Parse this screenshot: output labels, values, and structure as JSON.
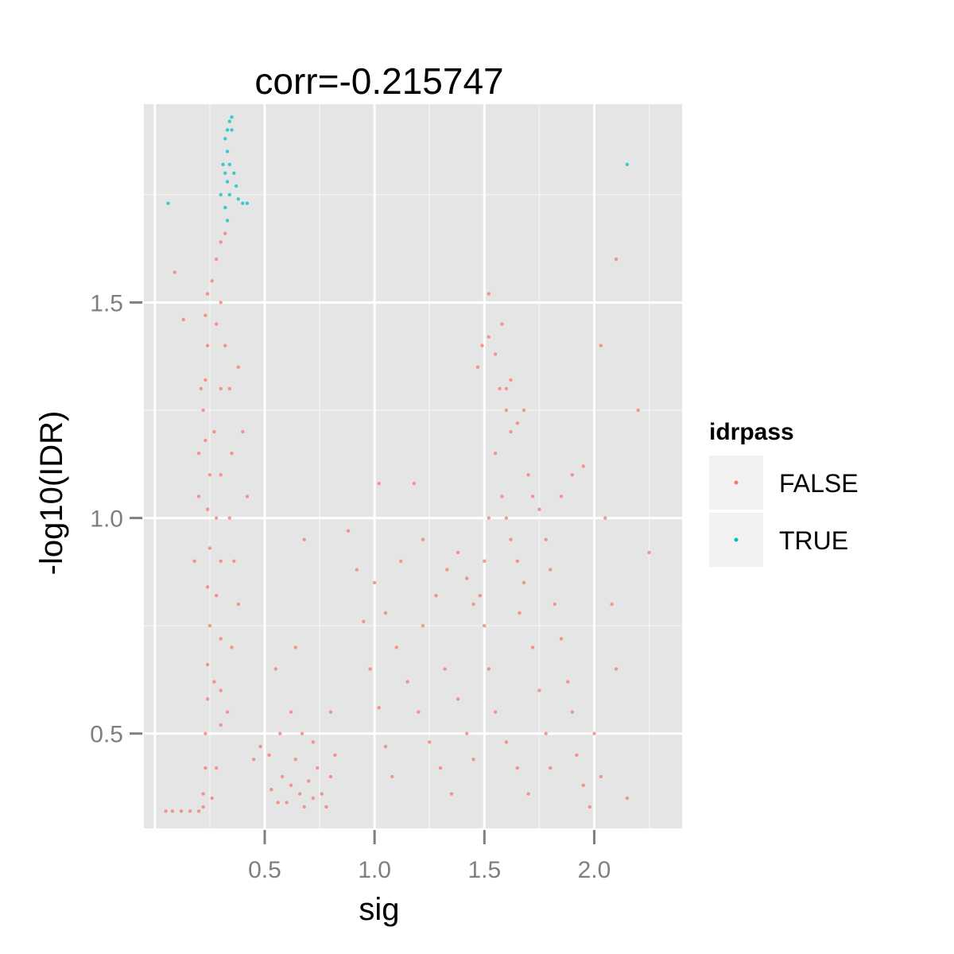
{
  "chart_data": {
    "type": "scatter",
    "title": "corr=-0.215747",
    "xlabel": "sig",
    "ylabel": "-log10(IDR)",
    "xlim": [
      -0.05,
      2.4
    ],
    "ylim": [
      0.28,
      1.96
    ],
    "x_ticks": [
      0.5,
      1.0,
      1.5,
      2.0
    ],
    "x_tick_labels": [
      "0.5",
      "1.0",
      "1.5",
      "2.0"
    ],
    "y_ticks": [
      0.5,
      1.0,
      1.5
    ],
    "y_tick_labels": [
      "0.5",
      "1.0",
      "1.5"
    ],
    "grid": true,
    "legend": {
      "title": "idrpass",
      "position": "right",
      "entries": [
        {
          "label": "FALSE",
          "color": "#F8766D"
        },
        {
          "label": "TRUE",
          "color": "#00BFC4"
        }
      ]
    },
    "series": [
      {
        "name": "FALSE",
        "color": "#F8766D",
        "points": [
          [
            0.05,
            0.32
          ],
          [
            0.08,
            0.32
          ],
          [
            0.12,
            0.32
          ],
          [
            0.16,
            0.32
          ],
          [
            0.2,
            0.32
          ],
          [
            0.22,
            0.33
          ],
          [
            0.22,
            0.36
          ],
          [
            0.23,
            0.42
          ],
          [
            0.23,
            0.5
          ],
          [
            0.24,
            0.58
          ],
          [
            0.24,
            0.66
          ],
          [
            0.25,
            0.75
          ],
          [
            0.24,
            0.84
          ],
          [
            0.25,
            0.93
          ],
          [
            0.24,
            1.02
          ],
          [
            0.25,
            1.1
          ],
          [
            0.23,
            1.18
          ],
          [
            0.22,
            1.25
          ],
          [
            0.23,
            1.32
          ],
          [
            0.24,
            1.4
          ],
          [
            0.23,
            1.47
          ],
          [
            0.24,
            1.52
          ],
          [
            0.26,
            1.55
          ],
          [
            0.28,
            1.6
          ],
          [
            0.3,
            1.64
          ],
          [
            0.32,
            1.66
          ],
          [
            0.3,
            1.5
          ],
          [
            0.28,
            1.45
          ],
          [
            0.3,
            1.3
          ],
          [
            0.27,
            1.2
          ],
          [
            0.3,
            1.1
          ],
          [
            0.28,
            1.0
          ],
          [
            0.3,
            0.9
          ],
          [
            0.28,
            0.82
          ],
          [
            0.3,
            0.72
          ],
          [
            0.27,
            0.62
          ],
          [
            0.3,
            0.52
          ],
          [
            0.28,
            0.42
          ],
          [
            0.26,
            0.35
          ],
          [
            0.32,
            1.4
          ],
          [
            0.34,
            1.3
          ],
          [
            0.35,
            1.15
          ],
          [
            0.34,
            1.0
          ],
          [
            0.36,
            0.9
          ],
          [
            0.38,
            0.8
          ],
          [
            0.35,
            0.7
          ],
          [
            0.4,
            1.2
          ],
          [
            0.42,
            1.05
          ],
          [
            0.38,
            1.35
          ],
          [
            0.2,
            1.05
          ],
          [
            0.18,
            0.9
          ],
          [
            0.21,
            1.3
          ],
          [
            0.2,
            1.15
          ],
          [
            0.09,
            1.57
          ],
          [
            0.13,
            1.46
          ],
          [
            0.3,
            0.6
          ],
          [
            0.33,
            0.55
          ],
          [
            0.53,
            0.37
          ],
          [
            0.56,
            0.34
          ],
          [
            0.58,
            0.4
          ],
          [
            0.6,
            0.34
          ],
          [
            0.62,
            0.38
          ],
          [
            0.64,
            0.44
          ],
          [
            0.66,
            0.36
          ],
          [
            0.68,
            0.33
          ],
          [
            0.7,
            0.39
          ],
          [
            0.72,
            0.35
          ],
          [
            0.74,
            0.42
          ],
          [
            0.76,
            0.36
          ],
          [
            0.78,
            0.33
          ],
          [
            0.8,
            0.4
          ],
          [
            0.82,
            0.45
          ],
          [
            0.57,
            0.5
          ],
          [
            0.62,
            0.55
          ],
          [
            0.67,
            0.5
          ],
          [
            0.72,
            0.48
          ],
          [
            0.8,
            0.55
          ],
          [
            0.52,
            0.45
          ],
          [
            0.48,
            0.47
          ],
          [
            0.45,
            0.44
          ],
          [
            0.68,
            0.95
          ],
          [
            0.55,
            0.65
          ],
          [
            0.64,
            0.7
          ],
          [
            0.88,
            0.97
          ],
          [
            0.92,
            0.88
          ],
          [
            0.95,
            0.76
          ],
          [
            0.98,
            0.65
          ],
          [
            1.02,
            0.56
          ],
          [
            1.05,
            0.47
          ],
          [
            1.08,
            0.4
          ],
          [
            1.0,
            0.85
          ],
          [
            1.05,
            0.78
          ],
          [
            1.1,
            0.7
          ],
          [
            1.15,
            0.62
          ],
          [
            1.2,
            0.55
          ],
          [
            1.25,
            0.48
          ],
          [
            1.3,
            0.42
          ],
          [
            1.35,
            0.36
          ],
          [
            1.22,
            0.75
          ],
          [
            1.28,
            0.82
          ],
          [
            1.33,
            0.88
          ],
          [
            1.38,
            0.92
          ],
          [
            1.42,
            0.86
          ],
          [
            1.45,
            0.8
          ],
          [
            1.32,
            0.65
          ],
          [
            1.38,
            0.58
          ],
          [
            1.42,
            0.5
          ],
          [
            1.45,
            0.44
          ],
          [
            1.12,
            0.9
          ],
          [
            1.18,
            1.08
          ],
          [
            1.22,
            0.95
          ],
          [
            1.02,
            1.08
          ],
          [
            1.47,
            1.35
          ],
          [
            1.49,
            1.4
          ],
          [
            1.52,
            1.42
          ],
          [
            1.55,
            1.38
          ],
          [
            1.57,
            1.3
          ],
          [
            1.6,
            1.25
          ],
          [
            1.62,
            1.2
          ],
          [
            1.55,
            1.15
          ],
          [
            1.58,
            1.05
          ],
          [
            1.6,
            1.0
          ],
          [
            1.62,
            0.95
          ],
          [
            1.65,
            0.9
          ],
          [
            1.68,
            0.85
          ],
          [
            1.52,
            1.0
          ],
          [
            1.5,
            0.9
          ],
          [
            1.48,
            0.82
          ],
          [
            1.5,
            0.75
          ],
          [
            1.52,
            0.65
          ],
          [
            1.55,
            0.55
          ],
          [
            1.6,
            0.48
          ],
          [
            1.65,
            0.42
          ],
          [
            1.7,
            0.36
          ],
          [
            1.7,
            1.1
          ],
          [
            1.72,
            1.05
          ],
          [
            1.75,
            1.02
          ],
          [
            1.78,
            0.95
          ],
          [
            1.8,
            0.88
          ],
          [
            1.82,
            0.8
          ],
          [
            1.85,
            0.72
          ],
          [
            1.88,
            0.62
          ],
          [
            1.9,
            0.55
          ],
          [
            1.92,
            0.45
          ],
          [
            1.95,
            0.38
          ],
          [
            1.98,
            0.33
          ],
          [
            1.85,
            1.05
          ],
          [
            1.9,
            1.1
          ],
          [
            1.95,
            1.12
          ],
          [
            1.68,
            1.25
          ],
          [
            1.65,
            1.22
          ],
          [
            1.72,
            0.7
          ],
          [
            1.75,
            0.6
          ],
          [
            1.78,
            0.5
          ],
          [
            1.8,
            0.42
          ],
          [
            1.62,
            1.32
          ],
          [
            1.6,
            1.3
          ],
          [
            1.66,
            0.78
          ],
          [
            1.58,
            1.45
          ],
          [
            2.03,
            1.4
          ],
          [
            2.05,
            1.0
          ],
          [
            2.08,
            0.8
          ],
          [
            2.1,
            0.65
          ],
          [
            2.03,
            0.4
          ],
          [
            2.15,
            0.35
          ],
          [
            2.25,
            0.92
          ],
          [
            2.1,
            1.6
          ],
          [
            2.2,
            1.25
          ],
          [
            1.52,
            1.52
          ],
          [
            2.0,
            0.5
          ]
        ]
      },
      {
        "name": "TRUE",
        "color": "#00BFC4",
        "points": [
          [
            0.33,
            1.69
          ],
          [
            0.32,
            1.72
          ],
          [
            0.34,
            1.75
          ],
          [
            0.33,
            1.78
          ],
          [
            0.32,
            1.8
          ],
          [
            0.34,
            1.82
          ],
          [
            0.33,
            1.85
          ],
          [
            0.32,
            1.88
          ],
          [
            0.33,
            1.9
          ],
          [
            0.34,
            1.92
          ],
          [
            0.35,
            1.93
          ],
          [
            0.35,
            1.9
          ],
          [
            0.36,
            1.8
          ],
          [
            0.37,
            1.77
          ],
          [
            0.38,
            1.74
          ],
          [
            0.4,
            1.73
          ],
          [
            0.42,
            1.73
          ],
          [
            0.3,
            1.75
          ],
          [
            0.31,
            1.82
          ],
          [
            0.06,
            1.73
          ],
          [
            2.15,
            1.82
          ]
        ]
      }
    ]
  }
}
